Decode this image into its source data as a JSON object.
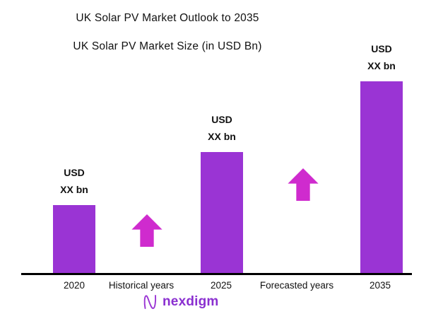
{
  "header": {
    "title": "UK Solar PV Market Outlook to 2035",
    "subtitle": "UK Solar PV Market Size (in USD Bn)"
  },
  "chart_data": {
    "type": "bar",
    "title": "UK Solar PV Market Outlook to 2035",
    "subtitle": "UK Solar PV Market Size (in USD Bn)",
    "categories": [
      "2020",
      "2025",
      "2035"
    ],
    "values_relative_height": [
      96,
      171,
      271
    ],
    "values_note": "actual values masked as XX in source image",
    "bar_value_labels": [
      {
        "line1": "USD",
        "line2": "XX bn"
      },
      {
        "line1": "USD",
        "line2": "XX bn"
      },
      {
        "line1": "USD",
        "line2": "XX bn"
      }
    ],
    "x_axis_labels": [
      "2020",
      "Historical years",
      "2025",
      "Forecasted years",
      "2035"
    ],
    "annotations": [
      {
        "label": "Historical years",
        "icon": "up-arrow"
      },
      {
        "label": "Forecasted years",
        "icon": "up-arrow"
      }
    ],
    "xlabel": "",
    "ylabel": "",
    "grid": false,
    "legend": false,
    "bar_color": "#9a34d4",
    "arrow_color": "#cf2bce",
    "axis_color": "#000000"
  },
  "footer": {
    "brand": "nexdigm",
    "brand_color": "#8a2fd0"
  }
}
